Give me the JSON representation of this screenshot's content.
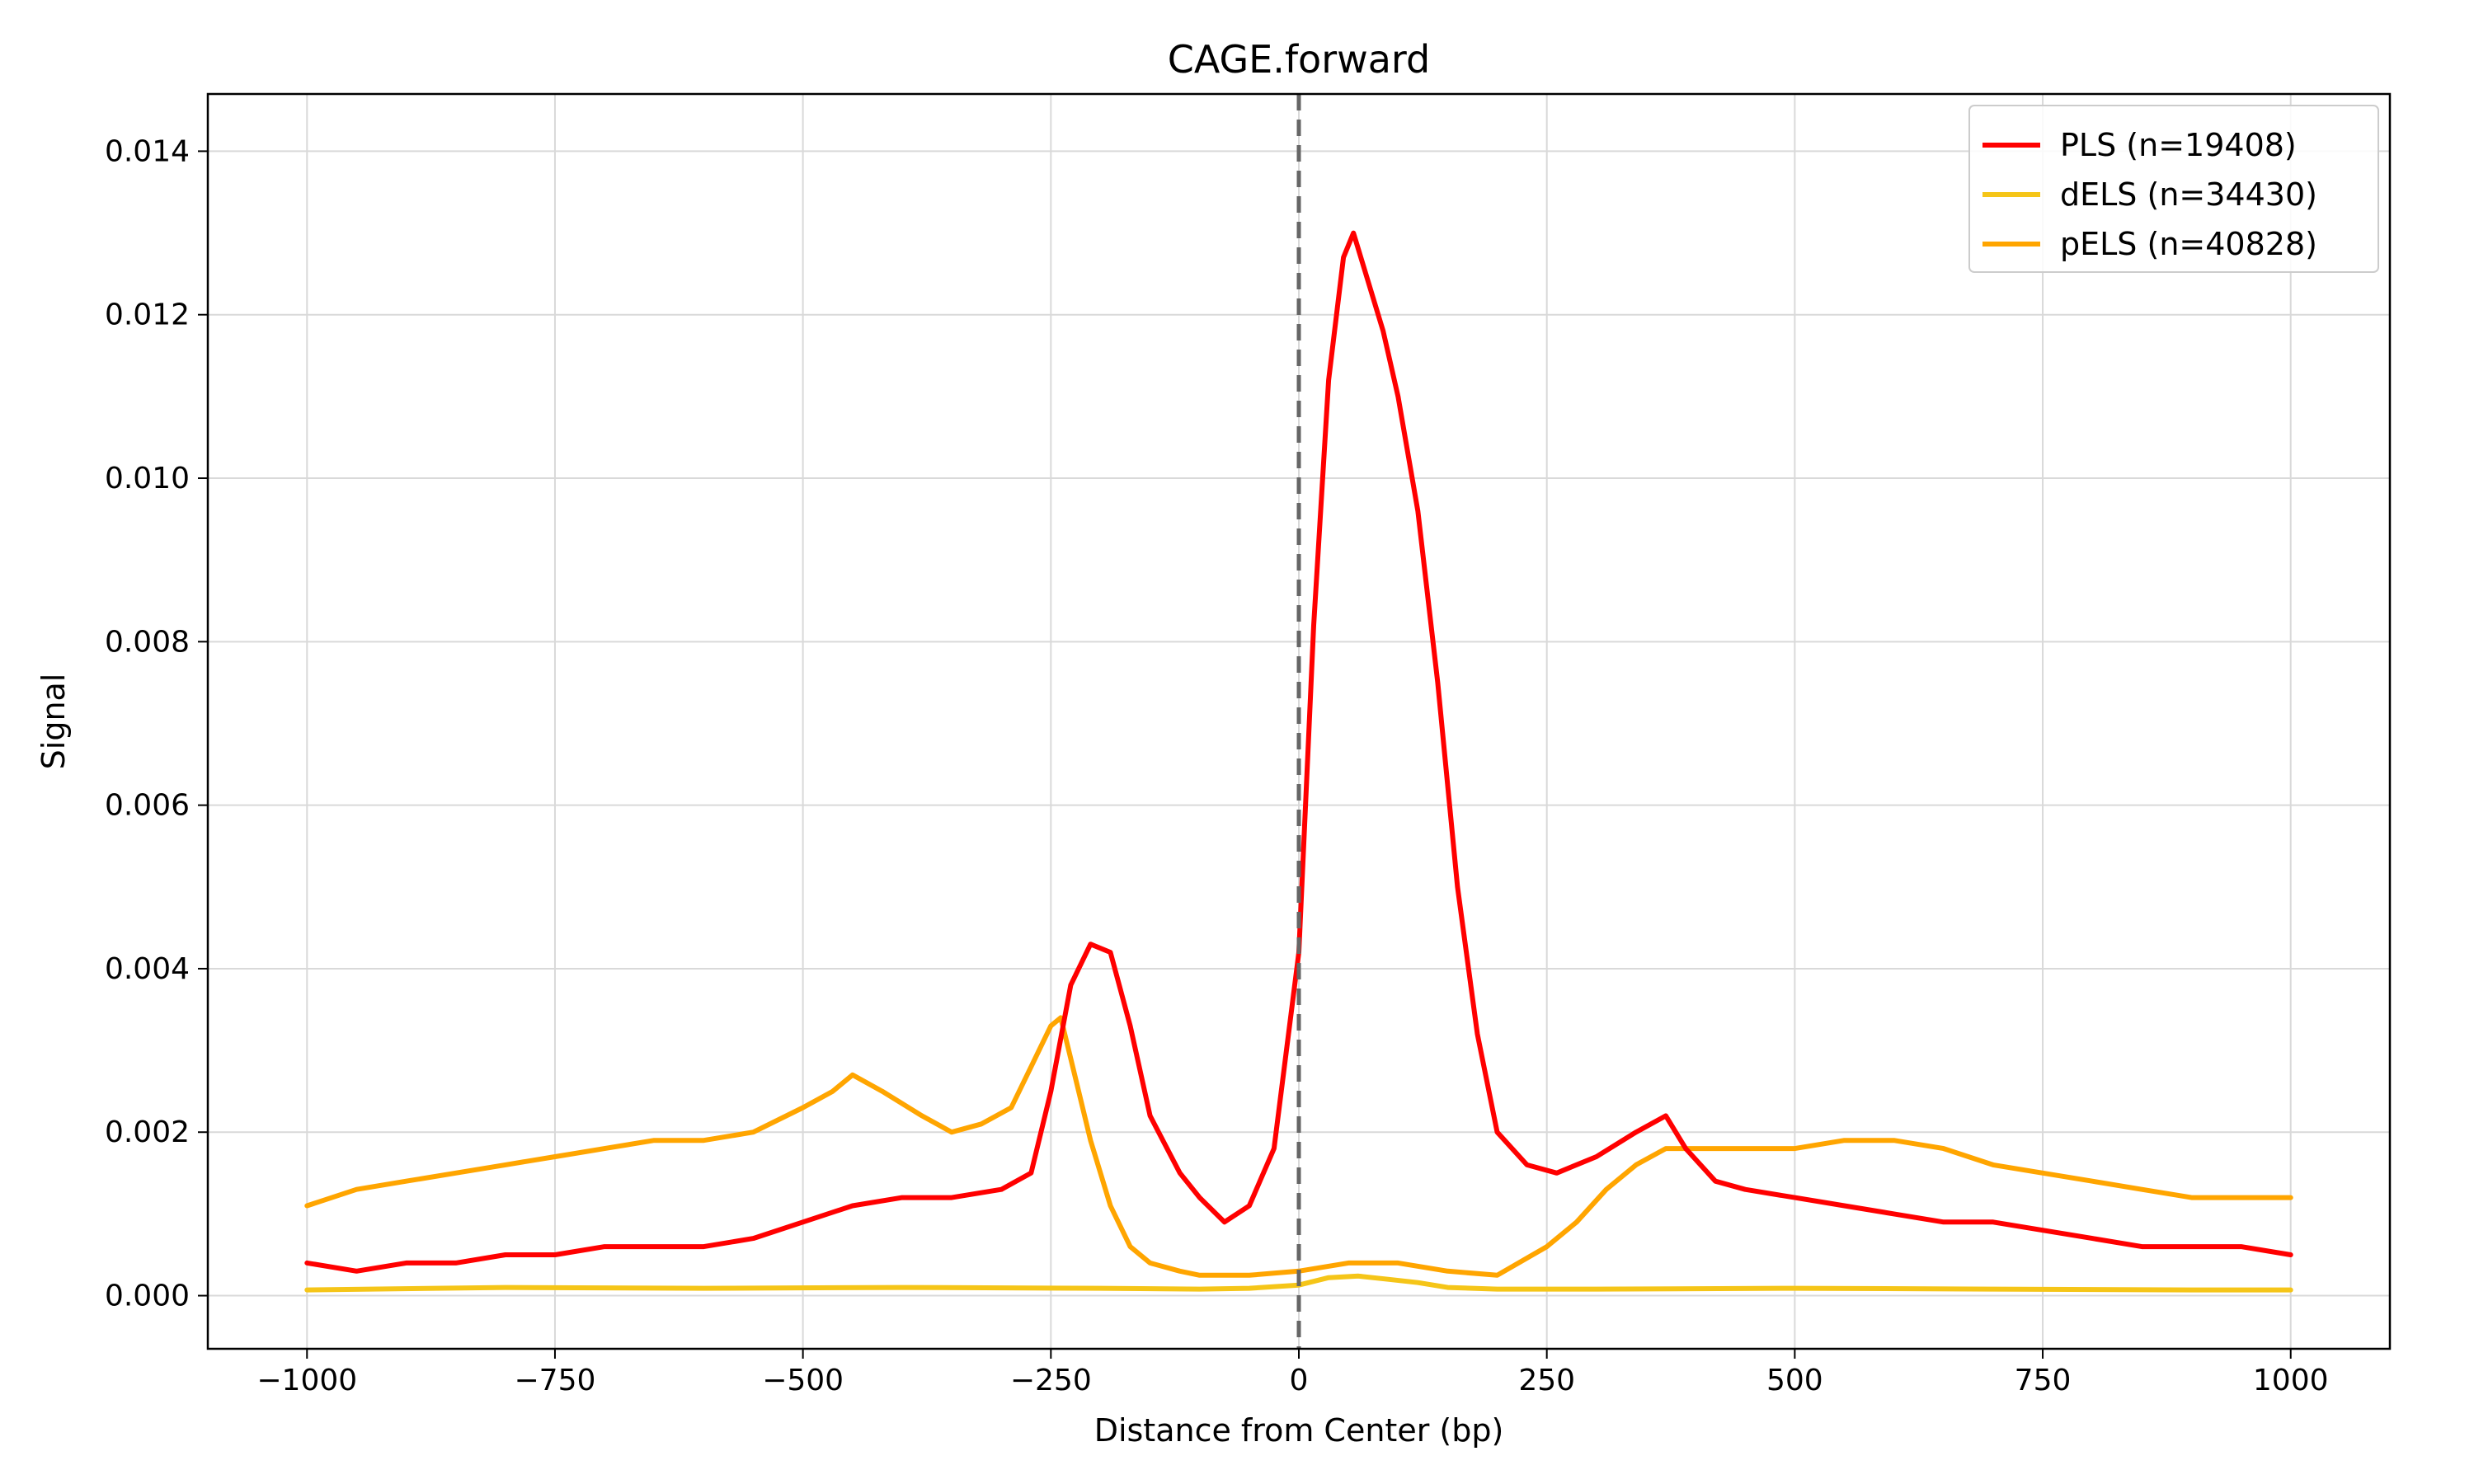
{
  "chart_data": {
    "type": "line",
    "title": "CAGE.forward",
    "xlabel": "Distance from Center (bp)",
    "ylabel": "Signal",
    "xlim": [
      -1100,
      1100
    ],
    "ylim": [
      -0.00065,
      0.0147
    ],
    "x_ticks": [
      -1000,
      -750,
      -500,
      -250,
      0,
      250,
      500,
      750,
      1000
    ],
    "x_tick_labels": [
      "−1000",
      "−750",
      "−500",
      "−250",
      "0",
      "250",
      "500",
      "750",
      "1000"
    ],
    "y_ticks": [
      0,
      0.002,
      0.004,
      0.006,
      0.008,
      0.01,
      0.012,
      0.014
    ],
    "y_tick_labels": [
      "0.000",
      "0.002",
      "0.004",
      "0.006",
      "0.008",
      "0.010",
      "0.012",
      "0.014"
    ],
    "grid": true,
    "legend_position": "top-right",
    "center_line": {
      "x": 0,
      "style": "dashed",
      "color": "#666666"
    },
    "series": [
      {
        "name": "PLS (n=19408)",
        "color": "#ff0000",
        "x": [
          -1000,
          -950,
          -900,
          -850,
          -800,
          -750,
          -700,
          -650,
          -600,
          -550,
          -500,
          -450,
          -400,
          -350,
          -300,
          -270,
          -250,
          -230,
          -210,
          -190,
          -170,
          -150,
          -120,
          -100,
          -75,
          -50,
          -25,
          0,
          15,
          30,
          45,
          55,
          65,
          75,
          85,
          100,
          120,
          140,
          160,
          180,
          200,
          230,
          260,
          300,
          340,
          370,
          390,
          420,
          450,
          500,
          550,
          600,
          650,
          700,
          750,
          800,
          850,
          900,
          950,
          1000
        ],
        "y": [
          0.0004,
          0.0003,
          0.0004,
          0.0004,
          0.0005,
          0.0005,
          0.0006,
          0.0006,
          0.0006,
          0.0007,
          0.0009,
          0.0011,
          0.0012,
          0.0012,
          0.0013,
          0.0015,
          0.0025,
          0.0038,
          0.0043,
          0.0042,
          0.0033,
          0.0022,
          0.0015,
          0.0012,
          0.0009,
          0.0011,
          0.0018,
          0.0042,
          0.0082,
          0.0112,
          0.0127,
          0.013,
          0.0126,
          0.0122,
          0.0118,
          0.011,
          0.0096,
          0.0075,
          0.005,
          0.0032,
          0.002,
          0.0016,
          0.0015,
          0.0017,
          0.002,
          0.0022,
          0.0018,
          0.0014,
          0.0013,
          0.0012,
          0.0011,
          0.001,
          0.0009,
          0.0009,
          0.0008,
          0.0007,
          0.0006,
          0.0006,
          0.0006,
          0.0005
        ]
      },
      {
        "name": "dELS (n=34430)",
        "color": "#f5c518",
        "x": [
          -1000,
          -800,
          -600,
          -400,
          -200,
          -100,
          -50,
          0,
          30,
          60,
          90,
          120,
          150,
          200,
          300,
          500,
          700,
          900,
          1000
        ],
        "y": [
          7e-05,
          0.0001,
          9e-05,
          0.0001,
          9e-05,
          8e-05,
          9e-05,
          0.00013,
          0.00022,
          0.00024,
          0.0002,
          0.00016,
          0.0001,
          8e-05,
          8e-05,
          9e-05,
          8e-05,
          7e-05,
          7e-05
        ]
      },
      {
        "name": "pELS (n=40828)",
        "color": "#ffa500",
        "x": [
          -1000,
          -950,
          -900,
          -850,
          -800,
          -750,
          -700,
          -650,
          -600,
          -550,
          -500,
          -470,
          -450,
          -420,
          -380,
          -350,
          -320,
          -290,
          -270,
          -250,
          -240,
          -230,
          -210,
          -190,
          -170,
          -150,
          -120,
          -100,
          -50,
          0,
          50,
          100,
          150,
          200,
          250,
          280,
          310,
          340,
          370,
          400,
          450,
          500,
          550,
          600,
          650,
          700,
          750,
          800,
          850,
          900,
          950,
          1000
        ],
        "y": [
          0.0011,
          0.0013,
          0.0014,
          0.0015,
          0.0016,
          0.0017,
          0.0018,
          0.0019,
          0.0019,
          0.002,
          0.0023,
          0.0025,
          0.0027,
          0.0025,
          0.0022,
          0.002,
          0.0021,
          0.0023,
          0.0028,
          0.0033,
          0.0034,
          0.0029,
          0.0019,
          0.0011,
          0.0006,
          0.0004,
          0.0003,
          0.00025,
          0.00025,
          0.0003,
          0.0004,
          0.0004,
          0.0003,
          0.00025,
          0.0006,
          0.0009,
          0.0013,
          0.0016,
          0.0018,
          0.0018,
          0.0018,
          0.0018,
          0.0019,
          0.0019,
          0.0018,
          0.0016,
          0.0015,
          0.0014,
          0.0013,
          0.0012,
          0.0012,
          0.0012
        ]
      }
    ]
  }
}
